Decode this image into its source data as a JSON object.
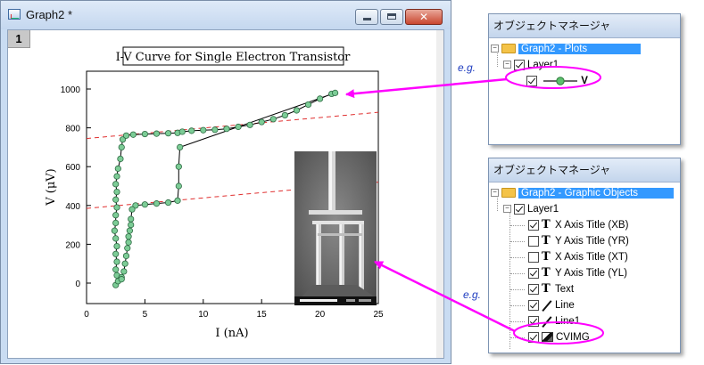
{
  "graph_window": {
    "title": "Graph2 *",
    "layer_number": "1",
    "controls": {
      "minimize": "minimize",
      "maximize": "maximize",
      "close": "close"
    }
  },
  "chart_data": {
    "type": "scatter",
    "title": "I-V Curve for Single Electron Transistor",
    "xlabel": "I (nA)",
    "ylabel": "V (μV)",
    "xlim": [
      0,
      25
    ],
    "ylim": [
      -50,
      1050
    ],
    "xticks": [
      "0",
      "5",
      "10",
      "15",
      "20",
      "25"
    ],
    "yticks": [
      "0",
      "200",
      "400",
      "600",
      "800",
      "1000"
    ],
    "series": [
      {
        "marker_color": "#7ccc96",
        "line_color": "#000000",
        "points": [
          [
            2.5,
            -10
          ],
          [
            2.7,
            10
          ],
          [
            2.6,
            40
          ],
          [
            2.5,
            70
          ],
          [
            2.6,
            110
          ],
          [
            2.5,
            150
          ],
          [
            2.6,
            190
          ],
          [
            2.5,
            230
          ],
          [
            2.4,
            270
          ],
          [
            2.5,
            310
          ],
          [
            2.5,
            350
          ],
          [
            2.6,
            390
          ],
          [
            2.5,
            430
          ],
          [
            2.6,
            470
          ],
          [
            2.5,
            510
          ],
          [
            2.6,
            550
          ],
          [
            2.7,
            590
          ],
          [
            2.9,
            640
          ],
          [
            3.0,
            700
          ],
          [
            3.1,
            740
          ],
          [
            3.4,
            760
          ],
          [
            4.0,
            765
          ],
          [
            5.0,
            768
          ],
          [
            6.0,
            770
          ],
          [
            7.0,
            772
          ],
          [
            7.8,
            774
          ],
          [
            8.2,
            780
          ],
          [
            9.0,
            785
          ],
          [
            10.0,
            788
          ],
          [
            11.0,
            790
          ],
          [
            12.0,
            795
          ],
          [
            13.0,
            805
          ],
          [
            14.0,
            815
          ],
          [
            15.0,
            830
          ],
          [
            16.0,
            845
          ],
          [
            17.0,
            865
          ],
          [
            18.0,
            890
          ],
          [
            19.0,
            920
          ],
          [
            20.0,
            950
          ],
          [
            21.0,
            975
          ],
          [
            21.3,
            980
          ],
          [
            8.0,
            700
          ],
          [
            7.9,
            600
          ],
          [
            7.9,
            500
          ],
          [
            7.8,
            425
          ],
          [
            7.0,
            415
          ],
          [
            6.0,
            410
          ],
          [
            5.0,
            405
          ],
          [
            4.2,
            400
          ],
          [
            3.9,
            380
          ],
          [
            3.8,
            330
          ],
          [
            3.8,
            300
          ],
          [
            3.7,
            270
          ],
          [
            3.6,
            240
          ],
          [
            3.6,
            210
          ],
          [
            3.5,
            180
          ],
          [
            3.4,
            140
          ],
          [
            3.3,
            100
          ],
          [
            3.2,
            60
          ],
          [
            3.0,
            30
          ],
          [
            3.0,
            20
          ]
        ]
      }
    ],
    "reference_lines": [
      {
        "style": "dashed",
        "color": "#e03030",
        "from": [
          0,
          745
        ],
        "to": [
          25,
          880
        ]
      },
      {
        "style": "dashed",
        "color": "#e03030",
        "from": [
          0,
          385
        ],
        "to": [
          25,
          520
        ]
      }
    ]
  },
  "plots_panel": {
    "title": "オブジェクトマネージャ",
    "root": "Graph2 - Plots",
    "layer": "Layer1",
    "plot_label": "V"
  },
  "graphics_panel": {
    "title": "オブジェクトマネージャ",
    "root": "Graph2 - Graphic Objects",
    "layer": "Layer1",
    "items": [
      {
        "label": "X Axis Title (XB)",
        "checked": true,
        "icon": "text-icon"
      },
      {
        "label": "Y Axis Title (YR)",
        "checked": false,
        "icon": "text-icon"
      },
      {
        "label": "X Axis Title (XT)",
        "checked": false,
        "icon": "text-icon"
      },
      {
        "label": "Y Axis Title (YL)",
        "checked": true,
        "icon": "text-icon"
      },
      {
        "label": "Text",
        "checked": true,
        "icon": "text-icon"
      },
      {
        "label": "Line",
        "checked": true,
        "icon": "line-icon"
      },
      {
        "label": "Line1",
        "checked": true,
        "icon": "line-icon"
      },
      {
        "label": "CVIMG",
        "checked": true,
        "icon": "image-icon"
      }
    ]
  },
  "annotations": {
    "eg1": "e.g.",
    "eg2": "e.g."
  },
  "colors": {
    "callout": "#ff00ff",
    "selection": "#3399ff"
  }
}
